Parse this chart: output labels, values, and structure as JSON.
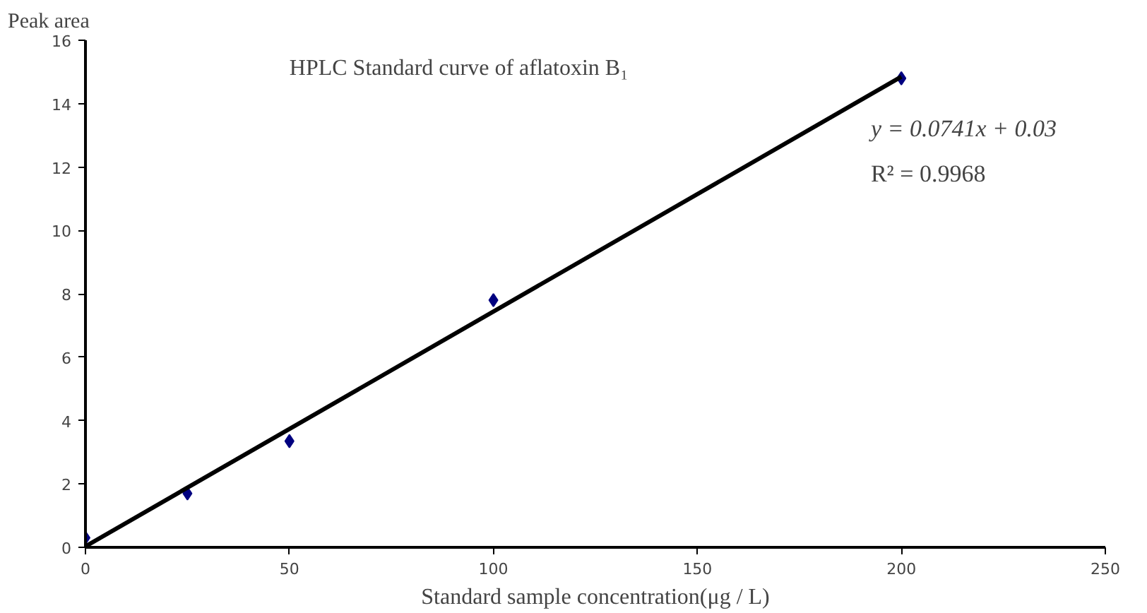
{
  "chart_data": {
    "type": "scatter",
    "title": "HPLC Standard curve of aflatoxin B₁",
    "xlabel": "Standard sample concentration(μg / L)",
    "ylabel": "Peak area",
    "x": [
      0,
      25,
      50,
      100,
      200
    ],
    "series": [
      {
        "color": "#000080",
        "values": [
          0.3,
          1.7,
          3.35,
          7.8,
          14.8
        ],
        "marker": "diamond"
      },
      {
        "type": "line",
        "color": "#000000",
        "x": [
          0,
          200
        ],
        "values": [
          0.03,
          14.85
        ],
        "line_style": "solid"
      }
    ],
    "annotations": [
      "y = 0.0741x + 0.03",
      "R² = 0.9968"
    ],
    "xlim": [
      0,
      250
    ],
    "ylim": [
      0,
      16
    ],
    "xticks": [
      0,
      50,
      100,
      150,
      200,
      250
    ],
    "yticks": [
      0,
      2,
      4,
      6,
      8,
      10,
      12,
      14,
      16
    ],
    "grid": false
  }
}
